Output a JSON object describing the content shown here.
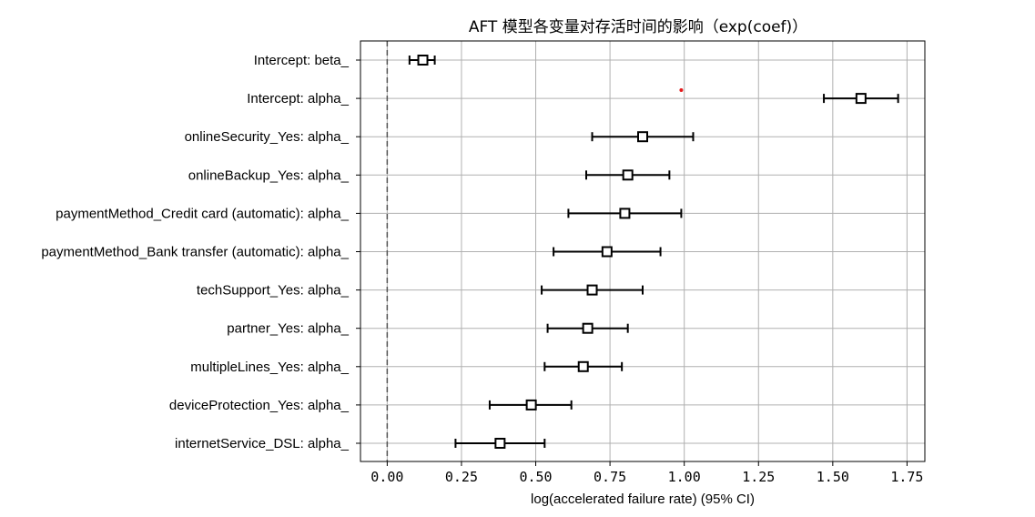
{
  "chart_data": {
    "type": "forest",
    "title": "AFT 模型各变量对存活时间的影响（exp(coef)）",
    "xlabel": "log(accelerated failure rate) (95% CI)",
    "ylabel": "",
    "xlim": [
      -0.09,
      1.81
    ],
    "xticks": [
      0.0,
      0.25,
      0.5,
      0.75,
      1.0,
      1.25,
      1.5,
      1.75
    ],
    "xtick_labels": [
      "0.00",
      "0.25",
      "0.50",
      "0.75",
      "1.00",
      "1.25",
      "1.50",
      "1.75"
    ],
    "grid": true,
    "reference_line": 0.0,
    "annotation_point": {
      "x": 0.99,
      "color": "#e41a1c"
    },
    "rows": [
      {
        "label": "Intercept: beta_",
        "coef": 0.12,
        "lower": 0.075,
        "upper": 0.16
      },
      {
        "label": "Intercept: alpha_",
        "coef": 1.595,
        "lower": 1.47,
        "upper": 1.72
      },
      {
        "label": "onlineSecurity_Yes: alpha_",
        "coef": 0.86,
        "lower": 0.69,
        "upper": 1.03
      },
      {
        "label": "onlineBackup_Yes: alpha_",
        "coef": 0.81,
        "lower": 0.67,
        "upper": 0.95
      },
      {
        "label": "paymentMethod_Credit card (automatic): alpha_",
        "coef": 0.8,
        "lower": 0.61,
        "upper": 0.99
      },
      {
        "label": "paymentMethod_Bank transfer (automatic): alpha_",
        "coef": 0.74,
        "lower": 0.56,
        "upper": 0.92
      },
      {
        "label": "techSupport_Yes: alpha_",
        "coef": 0.69,
        "lower": 0.52,
        "upper": 0.86
      },
      {
        "label": "partner_Yes: alpha_",
        "coef": 0.675,
        "lower": 0.54,
        "upper": 0.81
      },
      {
        "label": "multipleLines_Yes: alpha_",
        "coef": 0.66,
        "lower": 0.53,
        "upper": 0.79
      },
      {
        "label": "deviceProtection_Yes: alpha_",
        "coef": 0.485,
        "lower": 0.345,
        "upper": 0.62
      },
      {
        "label": "internetService_DSL: alpha_",
        "coef": 0.38,
        "lower": 0.23,
        "upper": 0.53
      }
    ]
  }
}
